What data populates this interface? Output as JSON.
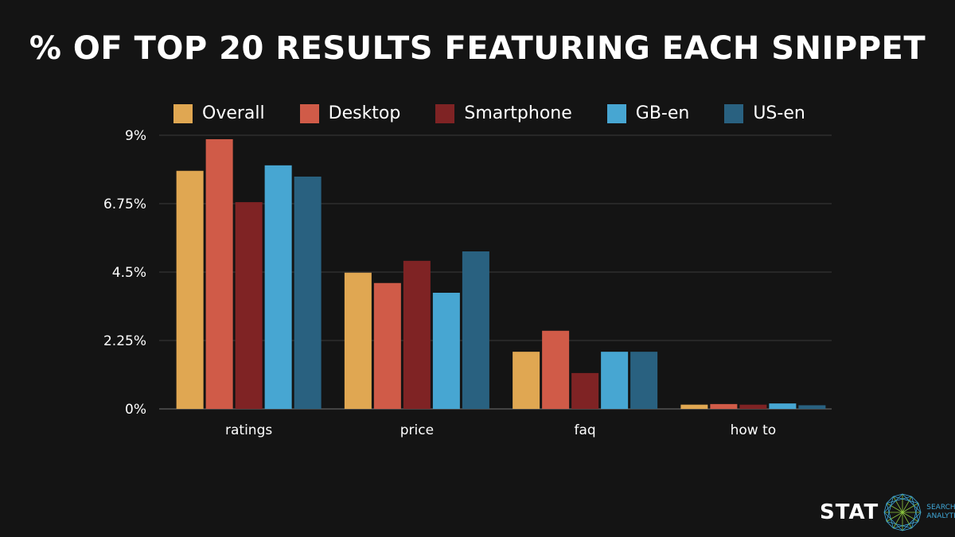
{
  "chart_data": {
    "type": "bar",
    "title": "% OF TOP 20 RESULTS FEATURING EACH SNIPPET",
    "categories": [
      "ratings",
      "price",
      "faq",
      "how to"
    ],
    "series": [
      {
        "name": "Overall",
        "color": "#e0a752",
        "values": [
          7.83,
          4.48,
          1.88,
          0.14
        ]
      },
      {
        "name": "Desktop",
        "color": "#d05b48",
        "values": [
          8.87,
          4.14,
          2.57,
          0.16
        ]
      },
      {
        "name": "Smartphone",
        "color": "#7f2324",
        "values": [
          6.8,
          4.87,
          1.18,
          0.14
        ]
      },
      {
        "name": "GB-en",
        "color": "#47a6d2",
        "values": [
          8.01,
          3.82,
          1.88,
          0.18
        ]
      },
      {
        "name": "US-en",
        "color": "#296180",
        "values": [
          7.64,
          5.18,
          1.88,
          0.12
        ]
      }
    ],
    "ylim": [
      0,
      9
    ],
    "yticks": [
      "0%",
      "2.25%",
      "4.5%",
      "6.75%",
      "9%"
    ],
    "ytick_values": [
      0,
      2.25,
      4.5,
      6.75,
      9
    ],
    "grid": true,
    "legend": "top",
    "xlabel": "",
    "ylabel": ""
  },
  "logo": {
    "name": "STAT",
    "sub1": "SEARCH",
    "sub2": "ANALYTICS"
  }
}
